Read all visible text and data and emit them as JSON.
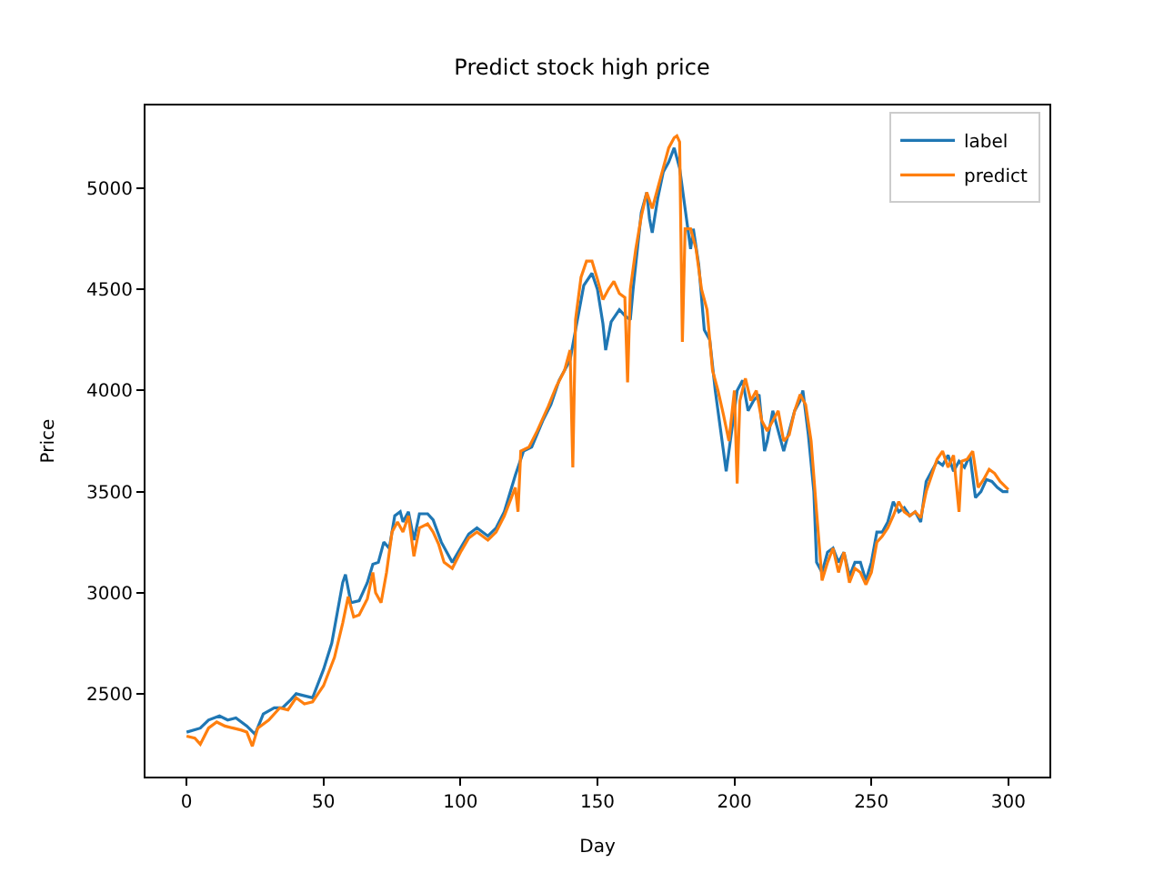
{
  "chart_data": {
    "type": "line",
    "title": "Predict stock high price",
    "xlabel": "Day",
    "ylabel": "Price",
    "xlim": [
      -15,
      315
    ],
    "xticks": [
      0,
      50,
      100,
      150,
      200,
      250,
      300
    ],
    "ylim": [
      2090,
      5410
    ],
    "yticks": [
      2500,
      3000,
      3500,
      4000,
      4500,
      5000
    ],
    "legend": "top right",
    "marker": "none",
    "line_style": "solid",
    "series": [
      {
        "name": "label",
        "color": "#1f77b4",
        "x": [
          0,
          5,
          8,
          12,
          15,
          18,
          22,
          25,
          28,
          32,
          35,
          38,
          40,
          43,
          46,
          50,
          53,
          55,
          57,
          58,
          60,
          63,
          66,
          68,
          70,
          72,
          74,
          76,
          78,
          79,
          81,
          83,
          85,
          88,
          90,
          93,
          95,
          97,
          100,
          103,
          106,
          110,
          113,
          116,
          120,
          123,
          126,
          130,
          133,
          136,
          140,
          142,
          145,
          148,
          150,
          152,
          153,
          155,
          158,
          160,
          162,
          163,
          166,
          168,
          169,
          170,
          172,
          174,
          176,
          178,
          180,
          182,
          184,
          185,
          187,
          189,
          191,
          193,
          195,
          197,
          199,
          201,
          203,
          205,
          207,
          209,
          211,
          212,
          214,
          216,
          218,
          220,
          222,
          224,
          225,
          227,
          229,
          230,
          232,
          234,
          236,
          238,
          240,
          242,
          244,
          246,
          248,
          250,
          252,
          254,
          256,
          258,
          260,
          262,
          264,
          266,
          268,
          270,
          272,
          274,
          276,
          278,
          280,
          282,
          284,
          286,
          288,
          290,
          292,
          294,
          296,
          298,
          300
        ],
        "values": [
          2310,
          2330,
          2370,
          2390,
          2370,
          2380,
          2340,
          2300,
          2400,
          2430,
          2430,
          2470,
          2500,
          2490,
          2480,
          2620,
          2750,
          2900,
          3050,
          3090,
          2950,
          2960,
          3050,
          3140,
          3150,
          3250,
          3220,
          3380,
          3400,
          3350,
          3400,
          3260,
          3390,
          3390,
          3360,
          3250,
          3200,
          3150,
          3220,
          3290,
          3320,
          3280,
          3320,
          3400,
          3580,
          3700,
          3720,
          3850,
          3930,
          4050,
          4150,
          4300,
          4520,
          4580,
          4500,
          4330,
          4200,
          4340,
          4400,
          4370,
          4350,
          4500,
          4880,
          4980,
          4850,
          4780,
          4950,
          5080,
          5130,
          5200,
          5100,
          4900,
          4700,
          4800,
          4620,
          4300,
          4250,
          4000,
          3800,
          3600,
          3800,
          4000,
          4050,
          3900,
          3950,
          3980,
          3700,
          3750,
          3900,
          3800,
          3700,
          3800,
          3900,
          3950,
          4000,
          3780,
          3500,
          3150,
          3100,
          3200,
          3220,
          3150,
          3200,
          3080,
          3150,
          3150,
          3060,
          3150,
          3300,
          3300,
          3350,
          3450,
          3400,
          3420,
          3380,
          3400,
          3350,
          3550,
          3600,
          3650,
          3630,
          3680,
          3600,
          3650,
          3620,
          3680,
          3470,
          3500,
          3560,
          3550,
          3520,
          3500,
          3500
        ]
      },
      {
        "name": "predict",
        "color": "#ff7f0e",
        "x": [
          0,
          3,
          5,
          8,
          11,
          14,
          17,
          20,
          22,
          24,
          26,
          30,
          34,
          37,
          40,
          43,
          46,
          50,
          54,
          57,
          59,
          61,
          63,
          66,
          68,
          69,
          71,
          73,
          75,
          77,
          79,
          81,
          83,
          85,
          88,
          90,
          92,
          94,
          97,
          100,
          103,
          106,
          110,
          113,
          116,
          120,
          121,
          122,
          125,
          128,
          132,
          135,
          138,
          140,
          141,
          142,
          144,
          146,
          148,
          150,
          152,
          154,
          156,
          158,
          160,
          161,
          162,
          164,
          166,
          168,
          170,
          172,
          174,
          176,
          178,
          179,
          180,
          181,
          182,
          184,
          186,
          188,
          190,
          192,
          194,
          196,
          198,
          200,
          201,
          202,
          204,
          206,
          208,
          210,
          212,
          214,
          216,
          218,
          220,
          222,
          224,
          226,
          228,
          230,
          232,
          234,
          236,
          238,
          240,
          242,
          244,
          246,
          248,
          250,
          252,
          254,
          256,
          258,
          260,
          262,
          264,
          266,
          268,
          270,
          272,
          274,
          276,
          278,
          280,
          282,
          283,
          285,
          287,
          289,
          291,
          293,
          295,
          297,
          300
        ],
        "values": [
          2290,
          2280,
          2250,
          2330,
          2360,
          2340,
          2330,
          2320,
          2310,
          2240,
          2330,
          2370,
          2430,
          2420,
          2480,
          2450,
          2460,
          2540,
          2680,
          2850,
          2980,
          2880,
          2890,
          2970,
          3100,
          3000,
          2950,
          3100,
          3300,
          3350,
          3300,
          3380,
          3180,
          3320,
          3340,
          3300,
          3240,
          3150,
          3120,
          3200,
          3270,
          3300,
          3260,
          3300,
          3380,
          3520,
          3400,
          3700,
          3720,
          3800,
          3920,
          4020,
          4100,
          4200,
          3620,
          4350,
          4560,
          4640,
          4640,
          4550,
          4450,
          4500,
          4540,
          4480,
          4460,
          4040,
          4500,
          4700,
          4860,
          4980,
          4900,
          5000,
          5100,
          5200,
          5250,
          5260,
          5230,
          4240,
          4800,
          4800,
          4700,
          4500,
          4400,
          4100,
          4000,
          3880,
          3750,
          4000,
          3540,
          3950,
          4060,
          3950,
          4000,
          3850,
          3800,
          3850,
          3900,
          3750,
          3780,
          3900,
          3980,
          3930,
          3750,
          3400,
          3060,
          3150,
          3220,
          3100,
          3200,
          3050,
          3120,
          3100,
          3040,
          3100,
          3250,
          3280,
          3320,
          3380,
          3450,
          3400,
          3380,
          3400,
          3370,
          3500,
          3580,
          3660,
          3700,
          3620,
          3680,
          3400,
          3650,
          3660,
          3700,
          3520,
          3560,
          3610,
          3590,
          3550,
          3510
        ]
      }
    ]
  }
}
